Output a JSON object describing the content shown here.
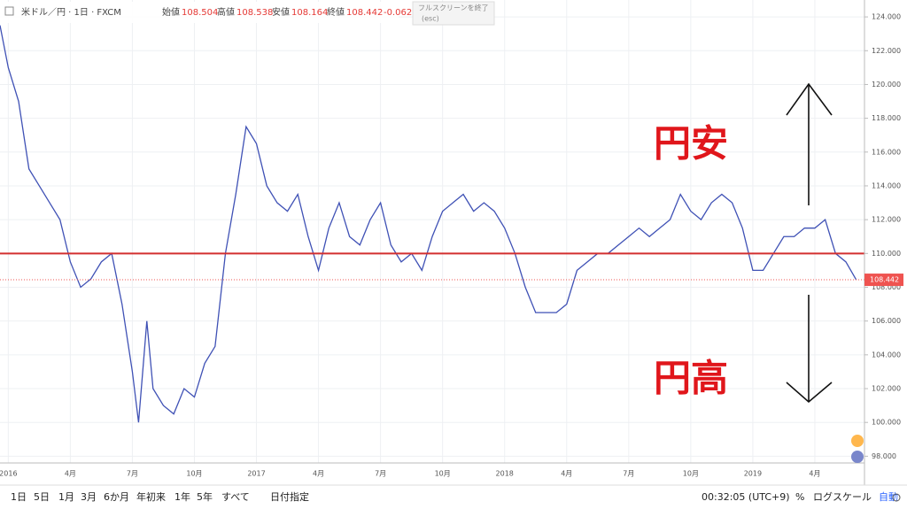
{
  "header": {
    "symbol": "米ドル／円 · 1日 · FXCM",
    "open_label": "始値",
    "open": "108.504",
    "high_label": "高値",
    "high": "108.538",
    "low_label": "安値",
    "low": "108.164",
    "close_label": "終値",
    "close": "108.442",
    "change": "-0.062 (",
    "fullscreen": "フルスクリーンを終了",
    "esc": "(esc)"
  },
  "toolbar": {
    "ranges": [
      "1日",
      "5日",
      "1月",
      "3月",
      "6か月",
      "年初来",
      "1年",
      "5年",
      "すべて",
      "日付指定"
    ],
    "clock": "00:32:05 (UTC+9)",
    "percent": "%",
    "log": "ログスケール",
    "auto": "自動"
  },
  "chart_data": {
    "type": "line",
    "x": [
      -0.4,
      0,
      0.5,
      1,
      1.5,
      2,
      2.5,
      3,
      3.5,
      4,
      4.5,
      5,
      5.5,
      6,
      6.3,
      6.7,
      7,
      7.5,
      8,
      8.5,
      9,
      9.5,
      10,
      10.5,
      11,
      11.5,
      12,
      12.5,
      13,
      13.5,
      14,
      14.5,
      15,
      15.5,
      16,
      16.5,
      17,
      17.5,
      18,
      18.5,
      19,
      19.5,
      20,
      20.5,
      21,
      21.5,
      22,
      22.5,
      23,
      23.5,
      24,
      24.5,
      25,
      25.5,
      26,
      26.5,
      27,
      27.5,
      28,
      28.5,
      29,
      29.5,
      30,
      30.5,
      31,
      31.5,
      32,
      32.5,
      33,
      33.5,
      34,
      34.5,
      35,
      35.5,
      36,
      36.5,
      37,
      37.5,
      38,
      38.5,
      39,
      39.5,
      40,
      40.5,
      41
    ],
    "series": [
      {
        "color": "#3f51b5",
        "values": [
          123.5,
          121,
          119,
          115,
          114,
          113,
          112,
          109.5,
          108,
          108.5,
          109.5,
          110,
          107,
          103,
          100,
          106,
          102,
          101,
          100.5,
          102,
          101.5,
          103.5,
          104.5,
          110,
          113.5,
          117.5,
          116.5,
          114,
          113,
          112.5,
          113.5,
          111,
          109,
          111.5,
          113,
          111,
          110.5,
          112,
          113,
          110.5,
          109.5,
          110,
          109,
          111,
          112.5,
          113,
          113.5,
          112.5,
          113,
          112.5,
          111.5,
          110,
          108,
          106.5,
          106.5,
          106.5,
          107,
          109,
          109.5,
          110,
          110,
          110.5,
          111,
          111.5,
          111,
          111.5,
          112,
          113.5,
          112.5,
          112,
          113,
          113.5,
          113,
          111.5,
          109,
          109,
          110,
          111,
          111,
          111.5,
          111.5,
          112,
          110,
          109.5,
          108.442
        ]
      }
    ],
    "xlim": [
      -0.4,
      41.4
    ],
    "ylim": [
      97.6,
      125
    ],
    "xticks": [
      {
        "value": 0,
        "label": "2016"
      },
      {
        "value": 3,
        "label": "4月"
      },
      {
        "value": 6,
        "label": "7月"
      },
      {
        "value": 9,
        "label": "10月"
      },
      {
        "value": 12,
        "label": "2017"
      },
      {
        "value": 15,
        "label": "4月"
      },
      {
        "value": 18,
        "label": "7月"
      },
      {
        "value": 21,
        "label": "10月"
      },
      {
        "value": 24,
        "label": "2018"
      },
      {
        "value": 27,
        "label": "4月"
      },
      {
        "value": 30,
        "label": "7月"
      },
      {
        "value": 33,
        "label": "10月"
      },
      {
        "value": 36,
        "label": "2019"
      },
      {
        "value": 39,
        "label": "4月"
      }
    ],
    "yticks": [
      {
        "value": 98,
        "label": "98.000"
      },
      {
        "value": 100,
        "label": "100.000"
      },
      {
        "value": 102,
        "label": "102.000"
      },
      {
        "value": 104,
        "label": "104.000"
      },
      {
        "value": 106,
        "label": "106.000"
      },
      {
        "value": 108,
        "label": "108.000"
      },
      {
        "value": 110,
        "label": "110.000"
      },
      {
        "value": 112,
        "label": "112.000"
      },
      {
        "value": 114,
        "label": "114.000"
      },
      {
        "value": 116,
        "label": "116.000"
      },
      {
        "value": 118,
        "label": "118.000"
      },
      {
        "value": 120,
        "label": "120.000"
      },
      {
        "value": 122,
        "label": "122.000"
      },
      {
        "value": 124,
        "label": "124.000"
      }
    ],
    "grid": true,
    "reference_line": {
      "value": 110,
      "color": "#d32f2f"
    },
    "last_price": 108.442,
    "last_price_color": "#ef5350",
    "annotations": {
      "weak_yen": "円安",
      "strong_yen": "円高"
    }
  }
}
